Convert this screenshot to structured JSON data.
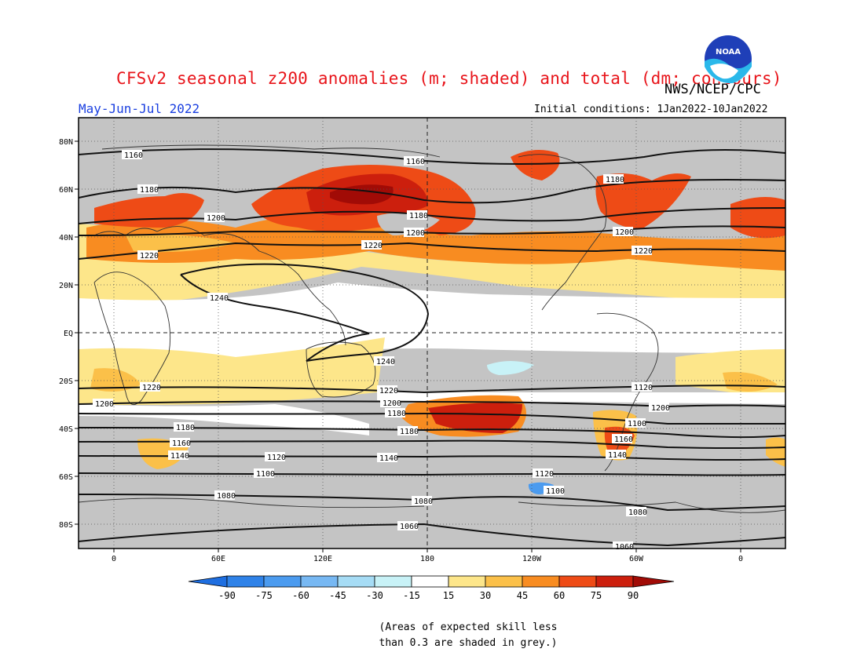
{
  "header": {
    "title": "CFSv2 seasonal z200 anomalies (m; shaded) and total (dm; contours)",
    "agency": "NWS/NCEP/CPC",
    "period": "May-Jun-Jul 2022",
    "initial_conditions": "Initial conditions: 1Jan2022-10Jan2022",
    "logo_text": "NOAA"
  },
  "map": {
    "lat_labels": [
      "80N",
      "60N",
      "40N",
      "20N",
      "EQ",
      "20S",
      "40S",
      "60S",
      "80S"
    ],
    "lon_labels": [
      "0",
      "60E",
      "120E",
      "180",
      "120W",
      "60W",
      "0"
    ],
    "contour_labels": [
      "1160",
      "1180",
      "1200",
      "1220",
      "1240",
      "1220",
      "1200",
      "1180",
      "1160",
      "1140",
      "1120",
      "1100",
      "1080",
      "1060",
      "1160",
      "1180",
      "1200",
      "1220",
      "1180",
      "1200",
      "1220",
      "1240",
      "1220",
      "1200",
      "1180",
      "1180",
      "1160",
      "1140",
      "1120",
      "1100",
      "1080",
      "1060",
      "1200",
      "1140",
      "1120",
      "1100",
      "1080"
    ]
  },
  "colorbar": {
    "ticks": [
      "-90",
      "-75",
      "-60",
      "-45",
      "-30",
      "-15",
      "15",
      "30",
      "45",
      "60",
      "75",
      "90"
    ],
    "colors": [
      "#1e6ee0",
      "#2f82e8",
      "#4b9bef",
      "#77b8f3",
      "#a6dcf5",
      "#c8f2f7",
      "#ffffff",
      "#fde68a",
      "#fbc049",
      "#f88c21",
      "#ee4b16",
      "#cc1f0d",
      "#a10b06"
    ]
  },
  "note": {
    "line1": "(Areas of expected skill less",
    "line2": "than 0.3 are shaded in grey.)"
  },
  "colors": {
    "title": "#e8141a",
    "period": "#1a3fe0",
    "grey_skill": "#c4c4c4"
  }
}
